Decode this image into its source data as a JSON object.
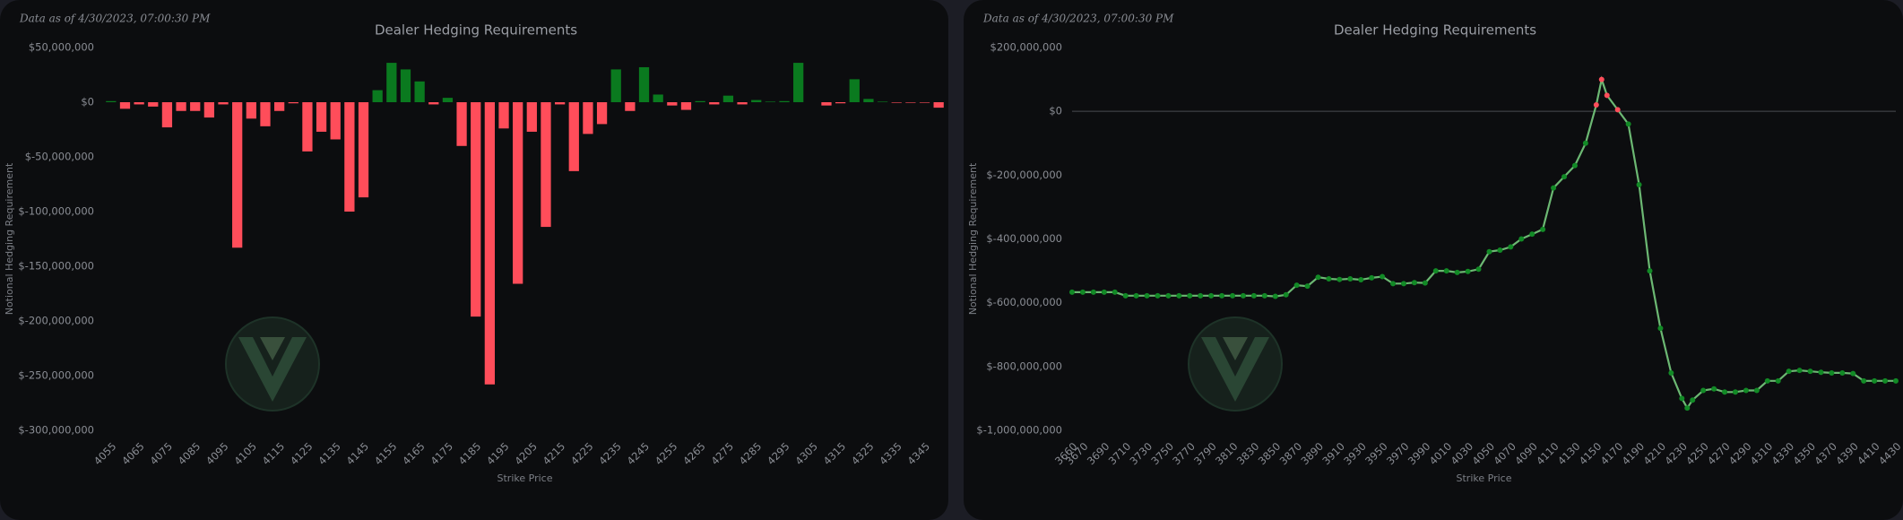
{
  "chart_data": [
    {
      "type": "bar",
      "data_as_of": "Data as of 4/30/2023, 07:00:30 PM",
      "title": "Dealer Hedging Requirements",
      "x_label": "Strike Price",
      "y_label": "Notional Hedging Requirement",
      "categories": [
        "4055",
        null,
        "4065",
        null,
        "4075",
        null,
        "4085",
        null,
        "4095",
        null,
        "4105",
        null,
        "4115",
        null,
        "4125",
        null,
        "4135",
        null,
        "4145",
        null,
        "4155",
        null,
        "4165",
        null,
        "4175",
        null,
        "4185",
        null,
        "4195",
        null,
        "4205",
        null,
        "4215",
        null,
        "4225",
        null,
        "4235",
        null,
        "4245",
        null,
        "4255",
        null,
        "4265",
        null,
        "4275",
        null,
        "4285",
        null,
        "4295",
        null,
        "4305",
        null,
        "4315",
        null,
        "4325",
        null,
        "4335",
        null,
        "4345",
        null
      ],
      "values": [
        1000000,
        -6000000,
        -2000000,
        -4000000,
        -23000000,
        -8000000,
        -8000000,
        -14000000,
        -2000000,
        -133000000,
        -15000000,
        -22000000,
        -8000000,
        -1000000,
        -45000000,
        -27000000,
        -34000000,
        -100000000,
        -87000000,
        11000000,
        36000000,
        30000000,
        19000000,
        -2000000,
        4000000,
        -40000000,
        -196000000,
        -258000000,
        -24000000,
        -166000000,
        -27000000,
        -114000000,
        -2000000,
        -63000000,
        -29000000,
        -20000000,
        30000000,
        -8000000,
        32000000,
        7000000,
        -3000000,
        -7000000,
        1000000,
        -2000000,
        6000000,
        -2000000,
        2000000,
        500000,
        1000000,
        36000000,
        0,
        -3000000,
        -1000000,
        21000000,
        3000000,
        500000,
        -500000,
        -500000,
        -500000,
        -5000000
      ],
      "positive_color": "#0a7a1f",
      "negative_color": "#ff4d5a",
      "ylim": [
        -300000000,
        50000000
      ],
      "yticks": [
        {
          "value": 50000000,
          "label": "$50,000,000"
        },
        {
          "value": 0,
          "label": "$0"
        },
        {
          "value": -50000000,
          "label": "$-50,000,000"
        },
        {
          "value": -100000000,
          "label": "$-100,000,000"
        },
        {
          "value": -150000000,
          "label": "$-150,000,000"
        },
        {
          "value": -200000000,
          "label": "$-200,000,000"
        },
        {
          "value": -250000000,
          "label": "$-250,000,000"
        },
        {
          "value": -300000000,
          "label": "$-300,000,000"
        }
      ]
    },
    {
      "type": "line",
      "data_as_of": "Data as of 4/30/2023, 07:00:30 PM",
      "title": "Dealer Hedging Requirements",
      "x_label": "Strike Price",
      "y_label": "Notional Hedging Requirement",
      "x": [
        3660,
        3670,
        3680,
        3690,
        3700,
        3710,
        3720,
        3730,
        3740,
        3750,
        3760,
        3770,
        3780,
        3790,
        3800,
        3810,
        3820,
        3830,
        3840,
        3850,
        3860,
        3870,
        3880,
        3890,
        3900,
        3910,
        3920,
        3930,
        3940,
        3950,
        3960,
        3970,
        3980,
        3990,
        4000,
        4010,
        4020,
        4030,
        4040,
        4050,
        4060,
        4070,
        4080,
        4090,
        4100,
        4110,
        4120,
        4130,
        4140,
        4150,
        4155,
        4160,
        4170,
        4180,
        4190,
        4200,
        4210,
        4220,
        4230,
        4235,
        4240,
        4250,
        4260,
        4270,
        4280,
        4290,
        4300,
        4310,
        4320,
        4330,
        4340,
        4350,
        4360,
        4370,
        4380,
        4390,
        4400,
        4410,
        4420,
        4430
      ],
      "values": [
        -567000000,
        -567000000,
        -567000000,
        -567000000,
        -567000000,
        -578000000,
        -578000000,
        -578000000,
        -578000000,
        -578000000,
        -578000000,
        -578000000,
        -578000000,
        -578000000,
        -578000000,
        -578000000,
        -578000000,
        -578000000,
        -578000000,
        -580000000,
        -575000000,
        -545000000,
        -548000000,
        -520000000,
        -525000000,
        -527000000,
        -525000000,
        -528000000,
        -522000000,
        -518000000,
        -540000000,
        -540000000,
        -537000000,
        -538000000,
        -500000000,
        -500000000,
        -505000000,
        -502000000,
        -495000000,
        -440000000,
        -435000000,
        -425000000,
        -400000000,
        -385000000,
        -370000000,
        -240000000,
        -205000000,
        -170000000,
        -100000000,
        20000000,
        100000000,
        50000000,
        5000000,
        -40000000,
        -230000000,
        -500000000,
        -680000000,
        -820000000,
        -900000000,
        -930000000,
        -905000000,
        -875000000,
        -870000000,
        -880000000,
        -880000000,
        -875000000,
        -875000000,
        -845000000,
        -845000000,
        -815000000,
        -812000000,
        -815000000,
        -818000000,
        -820000000,
        -820000000,
        -822000000,
        -845000000,
        -845000000,
        -845000000,
        -845000000
      ],
      "line_color": "#6cb873",
      "marker_color": "#128a26",
      "positive_marker_color": "#ff4d5a",
      "zero_line": true,
      "xlim": [
        3660,
        4430
      ],
      "xticks": [
        3660,
        3670,
        3690,
        3710,
        3730,
        3750,
        3770,
        3790,
        3810,
        3830,
        3850,
        3870,
        3890,
        3910,
        3930,
        3950,
        3970,
        3990,
        4010,
        4030,
        4050,
        4070,
        4090,
        4110,
        4130,
        4150,
        4170,
        4190,
        4210,
        4230,
        4250,
        4270,
        4290,
        4310,
        4330,
        4350,
        4370,
        4390,
        4410,
        4430
      ],
      "ylim": [
        -1000000000,
        200000000
      ],
      "yticks": [
        {
          "value": 200000000,
          "label": "$200,000,000"
        },
        {
          "value": 0,
          "label": "$0"
        },
        {
          "value": -200000000,
          "label": "$-200,000,000"
        },
        {
          "value": -400000000,
          "label": "$-400,000,000"
        },
        {
          "value": -600000000,
          "label": "$-600,000,000"
        },
        {
          "value": -800000000,
          "label": "$-800,000,000"
        },
        {
          "value": -1000000000,
          "label": "$-1,000,000,000"
        }
      ]
    }
  ]
}
